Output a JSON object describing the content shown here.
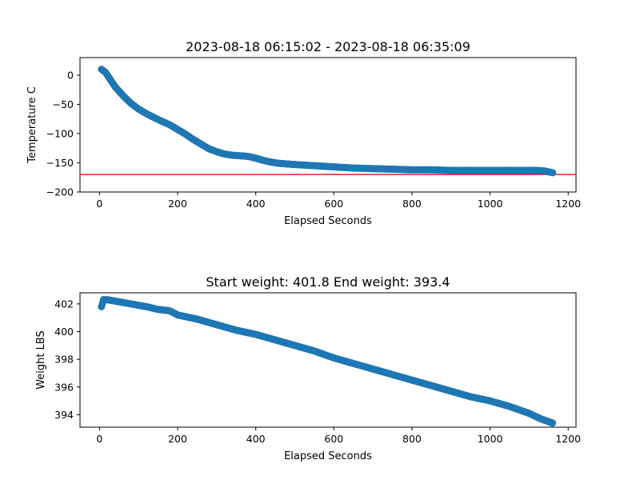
{
  "figure": {
    "background": "#ffffff"
  },
  "chart_data": [
    {
      "type": "scatter",
      "title": "2023-08-18 06:15:02 - 2023-08-18 06:35:09",
      "xlabel": "Elapsed Seconds",
      "ylabel": "Temperature C",
      "xlim": [
        -50,
        1220
      ],
      "ylim": [
        -200,
        30
      ],
      "xticks": [
        0,
        200,
        400,
        600,
        800,
        1000,
        1200
      ],
      "yticks": [
        0,
        -50,
        -100,
        -150,
        -200
      ],
      "grid": false,
      "marker_color": "#1f77b4",
      "reference_line": {
        "y": -170,
        "color": "#d62728"
      },
      "series": [
        {
          "x": [
            5,
            15,
            25,
            40,
            60,
            80,
            100,
            120,
            150,
            180,
            200,
            220,
            240,
            260,
            280,
            300,
            320,
            340,
            360,
            380,
            400,
            420,
            440,
            460,
            480,
            500,
            550,
            600,
            650,
            700,
            750,
            800,
            850,
            900,
            950,
            1000,
            1050,
            1100,
            1120,
            1140,
            1160
          ],
          "y": [
            10,
            5,
            -5,
            -20,
            -35,
            -48,
            -58,
            -66,
            -76,
            -85,
            -93,
            -101,
            -110,
            -118,
            -126,
            -131,
            -135,
            -137,
            -138,
            -139,
            -142,
            -146,
            -149,
            -151,
            -152,
            -153,
            -155,
            -157,
            -159,
            -160,
            -161,
            -162,
            -162,
            -163,
            -163,
            -163,
            -163,
            -163,
            -163,
            -164,
            -167
          ]
        }
      ]
    },
    {
      "type": "scatter",
      "title": "Start weight: 401.8 End weight: 393.4",
      "xlabel": "Elapsed Seconds",
      "ylabel": "Weight LBS",
      "xlim": [
        -50,
        1220
      ],
      "ylim": [
        393.1,
        402.8
      ],
      "xticks": [
        0,
        200,
        400,
        600,
        800,
        1000,
        1200
      ],
      "yticks": [
        394,
        396,
        398,
        400,
        402
      ],
      "grid": false,
      "marker_color": "#1f77b4",
      "series": [
        {
          "x": [
            5,
            10,
            20,
            40,
            60,
            80,
            100,
            120,
            150,
            180,
            200,
            250,
            300,
            350,
            400,
            450,
            500,
            550,
            600,
            650,
            700,
            750,
            800,
            850,
            900,
            950,
            1000,
            1050,
            1100,
            1130,
            1160
          ],
          "y": [
            401.8,
            402.3,
            402.3,
            402.2,
            402.1,
            402.0,
            401.9,
            401.8,
            401.6,
            401.5,
            401.2,
            400.9,
            400.5,
            400.1,
            399.8,
            399.4,
            399.0,
            398.6,
            398.1,
            397.7,
            397.3,
            396.9,
            396.5,
            396.1,
            395.7,
            395.3,
            395.0,
            394.6,
            394.1,
            393.7,
            393.4
          ]
        }
      ]
    }
  ]
}
